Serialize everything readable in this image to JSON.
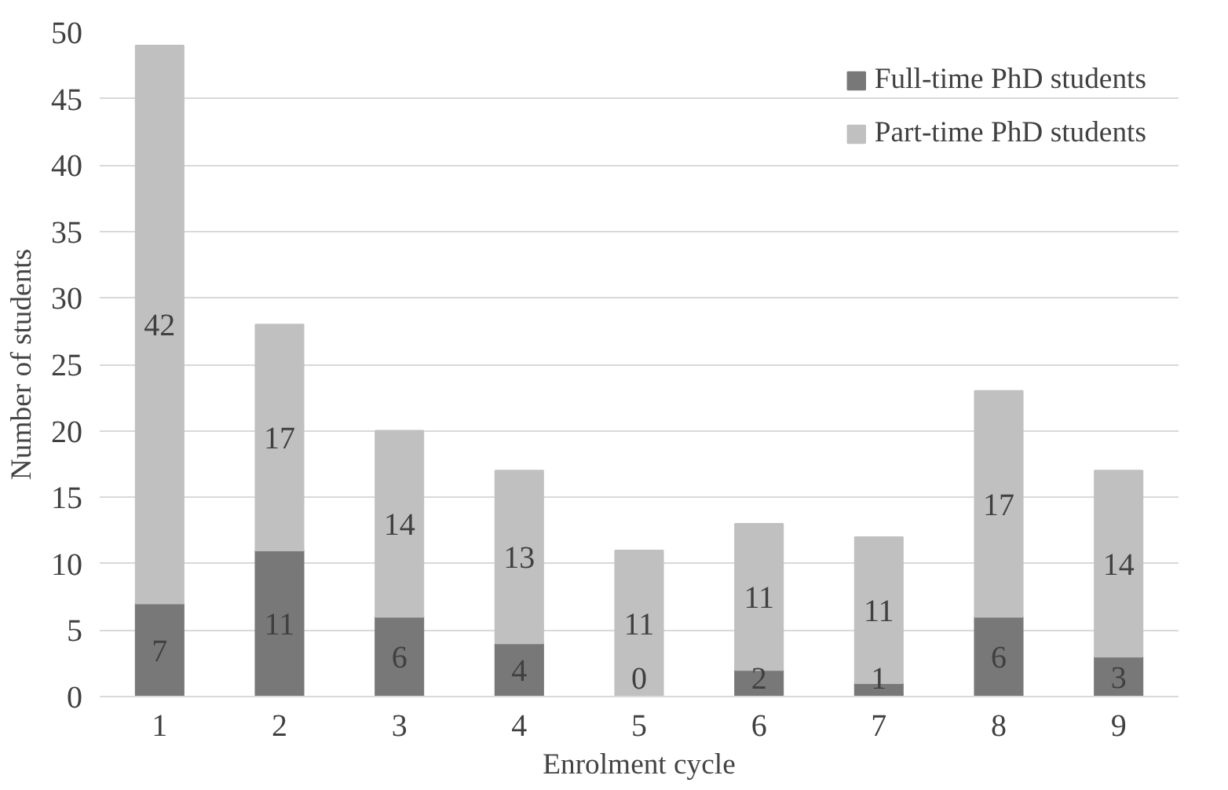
{
  "chart_data": {
    "type": "bar",
    "stacked": true,
    "xlabel": "Enrolment cycle",
    "ylabel": "Number of students",
    "categories": [
      "1",
      "2",
      "3",
      "4",
      "5",
      "6",
      "7",
      "8",
      "9"
    ],
    "series": [
      {
        "name": "Full-time PhD students",
        "color": "#787878",
        "values": [
          7,
          11,
          6,
          4,
          0,
          2,
          1,
          6,
          3
        ]
      },
      {
        "name": "Part-time PhD students",
        "color": "#c0c0c0",
        "values": [
          42,
          17,
          14,
          13,
          11,
          11,
          11,
          17,
          14
        ]
      }
    ],
    "ylim": [
      0,
      50
    ],
    "yticks": [
      0,
      5,
      10,
      15,
      20,
      25,
      30,
      35,
      40,
      45,
      50
    ],
    "grid": "y",
    "legend": "top right",
    "data_labels": true
  }
}
